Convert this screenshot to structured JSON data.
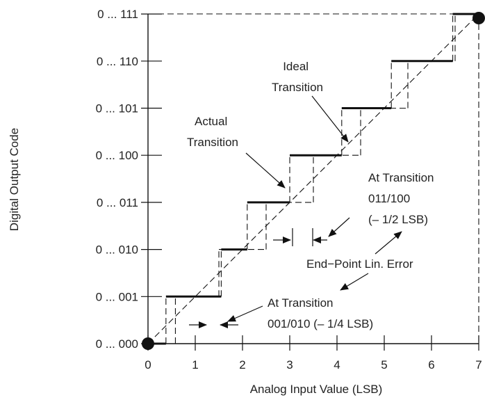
{
  "figure": {
    "y_title": "Digital Output Code",
    "x_title": "Analog Input Value (LSB)",
    "y_ticks": [
      "0 ... 000",
      "0 ... 001",
      "0 ... 010",
      "0 ... 011",
      "0 ... 100",
      "0 ... 101",
      "0 ... 110",
      "0 ... 111"
    ],
    "x_ticks": [
      "0",
      "1",
      "2",
      "3",
      "4",
      "5",
      "6",
      "7"
    ],
    "annotations": {
      "ideal": [
        "Ideal",
        "Transition"
      ],
      "actual": [
        "Actual",
        "Transition"
      ],
      "at_011_100": [
        "At Transition",
        "011/100",
        "(– 1/2 LSB)"
      ],
      "endpoint": "End−Point Lin. Error",
      "at_001_010": [
        "At Transition",
        "001/010 (– 1/4 LSB)"
      ]
    }
  },
  "chart_data": {
    "type": "line",
    "title": "",
    "xlabel": "Analog Input Value (LSB)",
    "ylabel": "Digital Output Code",
    "xlim": [
      0,
      7
    ],
    "ylim": [
      0,
      7
    ],
    "x_tick_labels": [
      "0",
      "1",
      "2",
      "3",
      "4",
      "5",
      "6",
      "7"
    ],
    "y_tick_labels": [
      "0 ... 000",
      "0 ... 001",
      "0 ... 010",
      "0 ... 011",
      "0 ... 100",
      "0 ... 101",
      "0 ... 110",
      "0 ... 111"
    ],
    "series": [
      {
        "x": [
          0,
          7
        ],
        "y": [
          0,
          7
        ],
        "style": "dashed"
      },
      {
        "x": [
          0,
          0.38,
          0.38,
          1.55,
          1.55,
          2.1,
          2.1,
          3.0,
          3.0,
          4.1,
          4.1,
          5.15,
          5.15,
          6.45,
          6.45,
          7
        ],
        "y": [
          0,
          0,
          1,
          1,
          2,
          2,
          3,
          3,
          4,
          4,
          5,
          5,
          6,
          6,
          7,
          7
        ],
        "style": "solid"
      },
      {
        "x": [
          0,
          0.58,
          0.58,
          1.5,
          1.5,
          2.5,
          2.5,
          3.5,
          3.5,
          4.5,
          4.5,
          5.5,
          5.5,
          6.5,
          6.5,
          7
        ],
        "y": [
          0,
          0,
          1,
          1,
          2,
          2,
          3,
          3,
          4,
          4,
          5,
          5,
          6,
          6,
          7,
          7
        ],
        "style": "dashed"
      }
    ],
    "endpoints": [
      [
        0,
        0
      ],
      [
        7,
        7
      ]
    ]
  }
}
